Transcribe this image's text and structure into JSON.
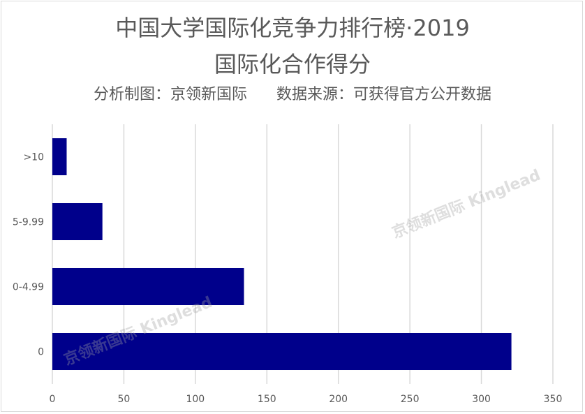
{
  "title_line1": "中国大学国际化竞争力排行榜·2019",
  "title_line2": "国际化合作得分",
  "subtitle": "分析制图：京领新国际      数据来源：可获得官方公开数据",
  "watermark": "京领新国际 Kinglead",
  "colors": {
    "bar": "#00008B",
    "grid": "#d9d9d9",
    "text": "#595959"
  },
  "chart_data": {
    "type": "bar",
    "orientation": "horizontal",
    "categories": [
      ">10",
      "5-9.99",
      "0-4.99",
      "0"
    ],
    "values": [
      10,
      35,
      134,
      321
    ],
    "xlim": [
      0,
      350
    ],
    "xticks": [
      0,
      50,
      100,
      150,
      200,
      250,
      300,
      350
    ],
    "grid": true,
    "legend": "none",
    "xlabel": "",
    "ylabel": ""
  }
}
